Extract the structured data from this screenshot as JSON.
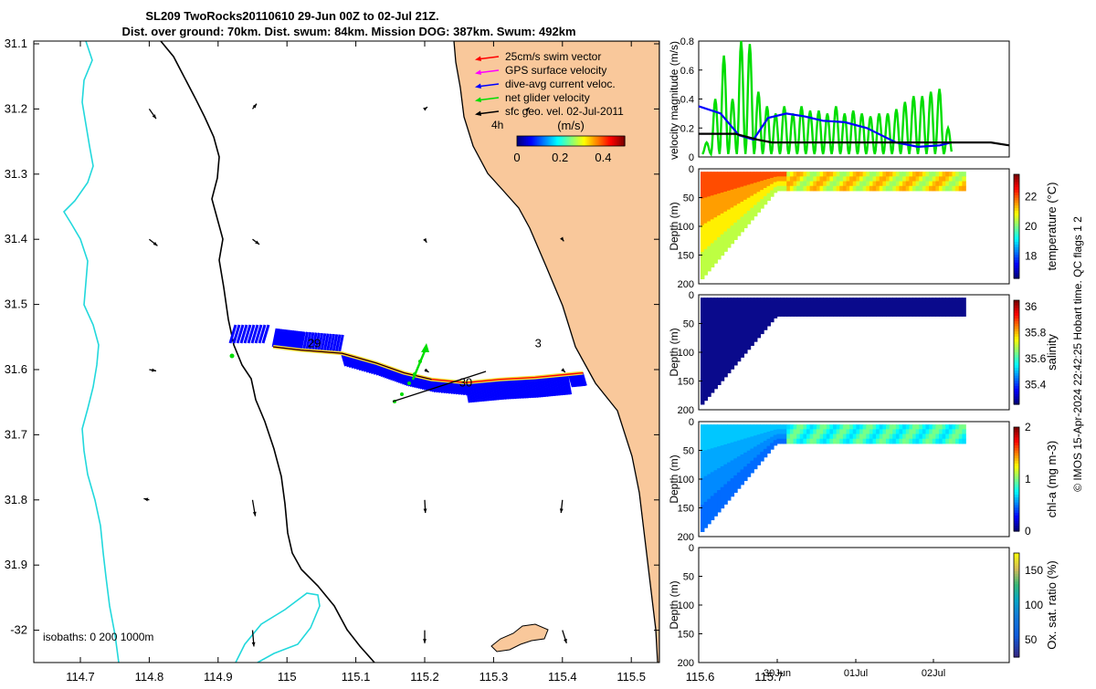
{
  "title": {
    "line1": "SL209 TwoRocks20110610 29-Jun 00Z to 02-Jul 21Z.",
    "line2": "Dist. over ground: 70km. Dist. swum: 84km. Mission DOG: 387km. Swum: 492km"
  },
  "credit": "© IMOS 15-Apr-2024 22:42:25 Hobart time. QC flags 1  2",
  "colors": {
    "land": "#f9c89b",
    "isobath_200": "#000000",
    "isobath_1000": "#22d8dc",
    "swim": "#ff0000",
    "gps": "#ff00ff",
    "dive_avg": "#0000ff",
    "net": "#00dd00",
    "geo": "#000000",
    "deep_blue": "#0a0a8c"
  },
  "chart_data": [
    {
      "type": "map",
      "name": "track-map",
      "xlim": [
        114.63,
        115.75
      ],
      "ylim": [
        -32.05,
        -31.08
      ],
      "xticks": [
        "114.7",
        "114.8",
        "114.9",
        "115",
        "115.1",
        "115.2",
        "115.3",
        "115.4",
        "115.5",
        "115.6",
        "115.7"
      ],
      "yticks": [
        "31.1",
        "31.2",
        "31.3",
        "31.4",
        "31.5",
        "31.6",
        "31.7",
        "31.8",
        "31.9",
        "-32"
      ],
      "legend": [
        {
          "label": "25cm/s swim vector",
          "color": "#ff0000"
        },
        {
          "label": "GPS surface velocity",
          "color": "#ff00ff"
        },
        {
          "label": "dive-avg current veloc.",
          "color": "#0000ff"
        },
        {
          "label": "net glider velocity",
          "color": "#00dd00"
        },
        {
          "label": "sfc geo. vel. 02-Jul-2011",
          "color": "#000000"
        }
      ],
      "legend_note": "4h",
      "colorbar": {
        "label": "(m/s)",
        "ticks": [
          "0",
          "0.2",
          "0.4"
        ],
        "range": [
          0,
          0.5
        ]
      },
      "isobath_text": "isobaths: 0   200  1000m",
      "track_labels": [
        {
          "text": "29",
          "lon": 115.03,
          "lat": -31.56
        },
        {
          "text": "30",
          "lon": 115.25,
          "lat": -31.62
        },
        {
          "text": "3",
          "lon": 115.36,
          "lat": -31.56
        }
      ],
      "track": [
        [
          114.98,
          -31.565
        ],
        [
          115.02,
          -31.57
        ],
        [
          115.08,
          -31.575
        ],
        [
          115.13,
          -31.59
        ],
        [
          115.17,
          -31.605
        ],
        [
          115.21,
          -31.615
        ],
        [
          115.26,
          -31.62
        ],
        [
          115.31,
          -31.615
        ],
        [
          115.36,
          -31.612
        ],
        [
          115.41,
          -31.607
        ],
        [
          115.43,
          -31.605
        ]
      ],
      "geo_vectors": [
        {
          "lon": 114.8,
          "lat": -31.2,
          "u": 0.01,
          "v": -0.015
        },
        {
          "lon": 114.95,
          "lat": -31.2,
          "u": 0.006,
          "v": 0.008
        },
        {
          "lon": 115.2,
          "lat": -31.2,
          "u": 0.004,
          "v": 0.003
        },
        {
          "lon": 115.35,
          "lat": -31.2,
          "u": 0.002,
          "v": 0.002
        },
        {
          "lon": 114.8,
          "lat": -31.4,
          "u": 0.012,
          "v": -0.01
        },
        {
          "lon": 114.95,
          "lat": -31.4,
          "u": 0.01,
          "v": -0.008
        },
        {
          "lon": 115.2,
          "lat": -31.4,
          "u": 0.003,
          "v": -0.005
        },
        {
          "lon": 115.4,
          "lat": -31.4,
          "u": 0.002,
          "v": -0.003
        },
        {
          "lon": 114.8,
          "lat": -31.6,
          "u": 0.01,
          "v": -0.002
        },
        {
          "lon": 115.2,
          "lat": -31.6,
          "u": 0.006,
          "v": -0.004
        },
        {
          "lon": 115.4,
          "lat": -31.6,
          "u": 0.004,
          "v": -0.004
        },
        {
          "lon": 115.6,
          "lat": -31.6,
          "u": 0.002,
          "v": -0.002
        },
        {
          "lon": 114.8,
          "lat": -31.8,
          "u": -0.008,
          "v": 0.002
        },
        {
          "lon": 114.95,
          "lat": -31.8,
          "u": 0.004,
          "v": -0.025
        },
        {
          "lon": 115.2,
          "lat": -31.8,
          "u": 0.001,
          "v": -0.02
        },
        {
          "lon": 115.4,
          "lat": -31.8,
          "u": -0.002,
          "v": -0.02
        },
        {
          "lon": 115.6,
          "lat": -31.8,
          "u": 0.0,
          "v": -0.01
        },
        {
          "lon": 114.95,
          "lat": -32.0,
          "u": 0.002,
          "v": -0.025
        },
        {
          "lon": 115.2,
          "lat": -32.0,
          "u": 0.0,
          "v": -0.02
        },
        {
          "lon": 115.4,
          "lat": -32.0,
          "u": 0.006,
          "v": -0.02
        },
        {
          "lon": 115.6,
          "lat": -32.0,
          "u": 0.002,
          "v": -0.006
        }
      ]
    },
    {
      "type": "line",
      "name": "velocity-magnitude",
      "ylabel": "velocity magnitude (m/s)",
      "ylim": [
        0,
        0.8
      ],
      "yticks": [
        "0",
        "0.2",
        "0.4",
        "0.6",
        "0.8"
      ],
      "xlim": [
        0,
        4.25
      ],
      "series": [
        {
          "name": "net glider velocity",
          "color": "#00dd00",
          "peaks": [
            0.1,
            0.4,
            0.7,
            0.4,
            0.8,
            0.78,
            0.45,
            0.35,
            0.3,
            0.35,
            0.3,
            0.35,
            0.32,
            0.32,
            0.3,
            0.35,
            0.3,
            0.32,
            0.3,
            0.28,
            0.3,
            0.3,
            0.33,
            0.38,
            0.42,
            0.42,
            0.45,
            0.47,
            0.2
          ]
        },
        {
          "name": "dive-avg current",
          "color": "#0000ff",
          "x": [
            0,
            0.3,
            0.55,
            0.75,
            0.95,
            1.2,
            1.45,
            1.7,
            2.0,
            2.3,
            2.5,
            2.7,
            3.0,
            3.3,
            3.45
          ],
          "y": [
            0.35,
            0.3,
            0.15,
            0.12,
            0.27,
            0.3,
            0.28,
            0.25,
            0.24,
            0.2,
            0.15,
            0.1,
            0.07,
            0.08,
            0.1
          ]
        },
        {
          "name": "sfc geo. vel.",
          "color": "#000000",
          "x": [
            0,
            0.5,
            0.8,
            1.0,
            1.5,
            2.0,
            2.5,
            3.0,
            3.5,
            4.0,
            4.25
          ],
          "y": [
            0.16,
            0.16,
            0.12,
            0.1,
            0.1,
            0.1,
            0.1,
            0.1,
            0.1,
            0.1,
            0.08
          ]
        }
      ]
    },
    {
      "type": "heatmap",
      "name": "temperature-section",
      "ylabel": "Depth (m)",
      "cbar_label": "temperature (°C)",
      "cbar_ticks": [
        "22",
        "20",
        "18"
      ],
      "cbar_range": [
        16.5,
        23.5
      ],
      "yticks": [
        "0",
        "50",
        "100",
        "150",
        "200"
      ],
      "ylim": [
        0,
        200
      ]
    },
    {
      "type": "heatmap",
      "name": "salinity-section",
      "ylabel": "Depth (m)",
      "cbar_label": "salinity",
      "cbar_ticks": [
        "36",
        "35.8",
        "35.6",
        "35.4"
      ],
      "cbar_range": [
        35.25,
        36.05
      ],
      "yticks": [
        "0",
        "50",
        "100",
        "150",
        "200"
      ],
      "ylim": [
        0,
        200
      ]
    },
    {
      "type": "heatmap",
      "name": "chla-section",
      "ylabel": "Depth (m)",
      "cbar_label": "chl-a (mg m-3)",
      "cbar_ticks": [
        "2",
        "1",
        "0"
      ],
      "cbar_range": [
        0,
        2
      ],
      "yticks": [
        "0",
        "50",
        "100",
        "150",
        "200"
      ],
      "ylim": [
        0,
        200
      ]
    },
    {
      "type": "heatmap",
      "name": "oxygen-section",
      "ylabel": "Depth (m)",
      "cbar_label": "Ox. sat. ratio (%)",
      "cbar_ticks": [
        "150",
        "100",
        "50"
      ],
      "cbar_range": [
        25,
        175
      ],
      "yticks": [
        "0",
        "50",
        "100",
        "150",
        "200"
      ],
      "ylim": [
        0,
        200
      ],
      "xticks": [
        "30Jun",
        "01Jul",
        "02Jul"
      ]
    }
  ]
}
